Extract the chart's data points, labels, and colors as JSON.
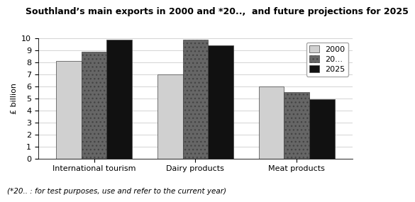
{
  "title": "Southland’s main exports in 2000 and *20..,  and future projections for 2025",
  "footnote": "(*20.. : for test purposes, use and refer to the current year)",
  "categories": [
    "International tourism",
    "Dairy products",
    "Meat products"
  ],
  "series": {
    "2000": [
      8.1,
      7.0,
      6.0
    ],
    "20...": [
      8.9,
      9.9,
      5.5
    ],
    "2025": [
      9.9,
      9.4,
      4.9
    ]
  },
  "legend_labels": [
    "2000",
    "20...",
    "2025"
  ],
  "bar_colors": [
    "#d0d0d0",
    "#666666",
    "#111111"
  ],
  "bar_hatches": [
    "",
    "...",
    ""
  ],
  "ylabel": "£ billion",
  "ylim": [
    0,
    10
  ],
  "yticks": [
    0,
    1,
    2,
    3,
    4,
    5,
    6,
    7,
    8,
    9,
    10
  ],
  "bg_color": "#ffffff",
  "grid_color": "#cccccc",
  "title_fontsize": 9,
  "axis_fontsize": 8,
  "legend_fontsize": 8,
  "footnote_fontsize": 7.5
}
